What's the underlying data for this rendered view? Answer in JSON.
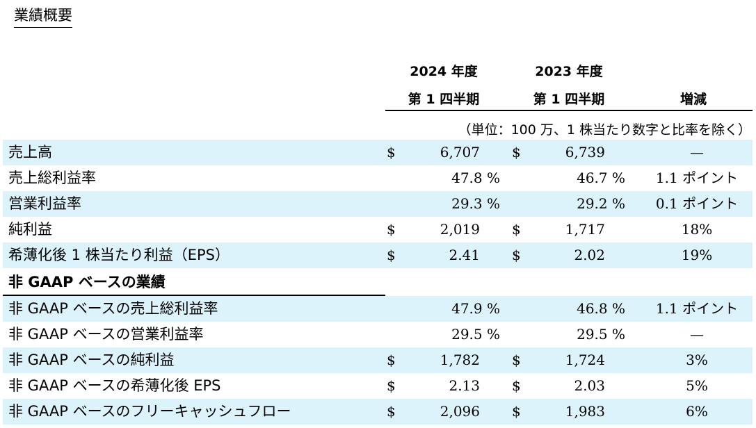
{
  "title": "業績概要",
  "header": {
    "col1_year": "2024 年度",
    "col2_year": "2023 年度",
    "col1_quarter": "第 1 四半期",
    "col2_quarter": "第 1 四半期",
    "change": "増減",
    "unit_note": "（単位：100 万、1 株当たり数字と比率を除く）"
  },
  "rows": [
    {
      "label": "売上高",
      "cur1": "$",
      "v1": "6,707",
      "cur2": "$",
      "v2": "6,739",
      "change": "—"
    },
    {
      "label": "売上総利益率",
      "p1": "47.8 %",
      "p2": "46.7 %",
      "change": "1.1 ポイント"
    },
    {
      "label": "営業利益率",
      "p1": "29.3 %",
      "p2": "29.2 %",
      "change": "0.1 ポイント"
    },
    {
      "label": "純利益",
      "cur1": "$",
      "v1": "2,019",
      "cur2": "$",
      "v2": "1,717",
      "change": "18%"
    },
    {
      "label": "希薄化後 1 株当たり利益（EPS）",
      "cur1": "$",
      "v1": "2.41",
      "cur2": "$",
      "v2": "2.02",
      "change": "19%"
    }
  ],
  "section_title": "非 GAAP ベースの業績",
  "nongaap_rows": [
    {
      "label": "非 GAAP ベースの売上総利益率",
      "p1": "47.9 %",
      "p2": "46.8 %",
      "change": "1.1 ポイント"
    },
    {
      "label": "非 GAAP ベースの営業利益率",
      "p1": "29.5 %",
      "p2": "29.5 %",
      "change": "—"
    },
    {
      "label": "非 GAAP ベースの純利益",
      "cur1": "$",
      "v1": "1,782",
      "cur2": "$",
      "v2": "1,724",
      "change": "3%"
    },
    {
      "label": "非 GAAP ベースの希薄化後 EPS",
      "cur1": "$",
      "v1": "2.13",
      "cur2": "$",
      "v2": "2.03",
      "change": "5%"
    },
    {
      "label": "非 GAAP ベースのフリーキャッシュフロー",
      "cur1": "$",
      "v1": "2,096",
      "cur2": "$",
      "v2": "1,983",
      "change": "6%"
    }
  ]
}
